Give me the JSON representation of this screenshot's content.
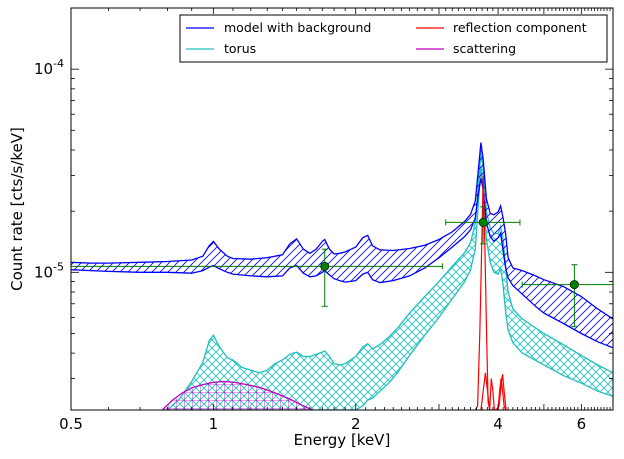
{
  "chart_data": {
    "type": "line",
    "xlabel": "Energy [keV]",
    "ylabel": "Count rate [cts/s/keV]",
    "x_scale": "log",
    "y_scale": "log",
    "xlim": [
      0.5,
      7.0
    ],
    "ylim": [
      2.1e-06,
      0.0002
    ],
    "x_ticks": [
      {
        "value": 0.5,
        "label": "0.5"
      },
      {
        "value": 1,
        "label": "1"
      },
      {
        "value": 2,
        "label": "2"
      },
      {
        "value": 4,
        "label": "4"
      },
      {
        "value": 6,
        "label": "6"
      }
    ],
    "y_ticks": [
      {
        "value": 1e-05,
        "base": "10",
        "exp": "-5"
      },
      {
        "value": 0.0001,
        "base": "10",
        "exp": "-4"
      }
    ],
    "legend": {
      "placement": "top-right",
      "entries": [
        {
          "label": "model with background",
          "color": "#0000ff"
        },
        {
          "label": "torus",
          "color": "#1fbfbf"
        },
        {
          "label": "reflection component",
          "color": "#ff0000"
        },
        {
          "label": "scattering",
          "color": "#bf00bf"
        }
      ]
    },
    "series": [
      {
        "name": "model with background",
        "color": "#0000ff",
        "hatch": "diagonal",
        "x": [
          0.5,
          0.55,
          0.6,
          0.7,
          0.8,
          0.9,
          0.95,
          0.98,
          1.0,
          1.03,
          1.07,
          1.1,
          1.2,
          1.3,
          1.4,
          1.45,
          1.5,
          1.55,
          1.6,
          1.65,
          1.7,
          1.72,
          1.76,
          1.8,
          1.85,
          1.9,
          2.0,
          2.07,
          2.12,
          2.17,
          2.25,
          2.4,
          2.6,
          2.8,
          3.0,
          3.2,
          3.4,
          3.5,
          3.58,
          3.63,
          3.68,
          3.72,
          3.78,
          3.85,
          3.92,
          4.0,
          4.05,
          4.1,
          4.15,
          4.2,
          4.3,
          4.5,
          4.8,
          5.0,
          5.5,
          6.0,
          6.5,
          7.0
        ],
        "upper": [
          1.12e-05,
          1.11e-05,
          1.11e-05,
          1.12e-05,
          1.13e-05,
          1.15e-05,
          1.2e-05,
          1.35e-05,
          1.42e-05,
          1.3e-05,
          1.2e-05,
          1.17e-05,
          1.16e-05,
          1.18e-05,
          1.22e-05,
          1.38e-05,
          1.46e-05,
          1.3e-05,
          1.24e-05,
          1.3e-05,
          1.42e-05,
          1.45e-05,
          1.3e-05,
          1.23e-05,
          1.24e-05,
          1.26e-05,
          1.33e-05,
          1.48e-05,
          1.52e-05,
          1.35e-05,
          1.29e-05,
          1.28e-05,
          1.31e-05,
          1.36e-05,
          1.45e-05,
          1.58e-05,
          1.78e-05,
          1.93e-05,
          2.25e-05,
          3.1e-05,
          4.35e-05,
          3.6e-05,
          2.3e-05,
          1.95e-05,
          1.92e-05,
          1.98e-05,
          2.12e-05,
          1.85e-05,
          1.55e-05,
          1.18e-05,
          1.05e-05,
          1.02e-05,
          9.6e-06,
          9.2e-06,
          8.5e-06,
          7.6e-06,
          6.6e-06,
          5.9e-06
        ],
        "lower": [
          1.03e-05,
          1.02e-05,
          1.01e-05,
          1e-05,
          1e-05,
          9.9e-06,
          1.02e-05,
          1.06e-05,
          1.08e-05,
          1.04e-05,
          1e-05,
          9.8e-06,
          9.6e-06,
          9.5e-06,
          9.6e-06,
          1.05e-05,
          1.08e-05,
          9.9e-06,
          9.5e-06,
          9.6e-06,
          1e-05,
          1.02e-05,
          9.7e-06,
          9.3e-06,
          9.1e-06,
          8.95e-06,
          9.1e-06,
          9.8e-06,
          1e-05,
          9.2e-06,
          8.9e-06,
          9.1e-06,
          9.6e-06,
          1.05e-05,
          1.18e-05,
          1.33e-05,
          1.5e-05,
          1.62e-05,
          1.85e-05,
          2.4e-05,
          2.9e-05,
          2.55e-05,
          1.75e-05,
          1.5e-05,
          1.42e-05,
          1.48e-05,
          1.56e-05,
          1.28e-05,
          1.05e-05,
          9.4e-06,
          8.6e-06,
          7.8e-06,
          6.8e-06,
          6.3e-06,
          5.6e-06,
          5e-06,
          4.55e-06,
          4.25e-06
        ]
      },
      {
        "name": "torus",
        "color": "#1fbfbf",
        "hatch": "cross",
        "x": [
          0.8,
          0.85,
          0.9,
          0.95,
          0.98,
          1.0,
          1.03,
          1.07,
          1.1,
          1.15,
          1.2,
          1.25,
          1.3,
          1.35,
          1.4,
          1.45,
          1.5,
          1.55,
          1.6,
          1.65,
          1.7,
          1.72,
          1.76,
          1.8,
          1.85,
          1.9,
          2.0,
          2.07,
          2.12,
          2.17,
          2.25,
          2.35,
          2.45,
          2.6,
          2.8,
          3.0,
          3.2,
          3.4,
          3.5,
          3.58,
          3.63,
          3.68,
          3.72,
          3.78,
          3.85,
          3.92,
          4.0,
          4.05,
          4.1,
          4.15,
          4.2,
          4.3,
          4.5,
          5.0,
          5.5,
          6.0,
          6.5,
          7.0
        ],
        "upper": [
          2.1e-06,
          2.4e-06,
          2.9e-06,
          3.6e-06,
          4.6e-06,
          4.9e-06,
          4.3e-06,
          3.8e-06,
          3.7e-06,
          3.4e-06,
          3.3e-06,
          3.2e-06,
          3.3e-06,
          3.55e-06,
          3.7e-06,
          3.95e-06,
          4.05e-06,
          3.85e-06,
          3.85e-06,
          3.95e-06,
          4.05e-06,
          4.1e-06,
          3.85e-06,
          3.55e-06,
          3.5e-06,
          3.55e-06,
          3.85e-06,
          4.3e-06,
          4.45e-06,
          4.2e-06,
          4.4e-06,
          4.8e-06,
          5.3e-06,
          6.3e-06,
          7.6e-06,
          9e-06,
          1.07e-05,
          1.25e-05,
          1.4e-05,
          1.75e-05,
          2.6e-05,
          3.9e-05,
          3.2e-05,
          2e-05,
          1.65e-05,
          1.55e-05,
          1.55e-05,
          1.68e-05,
          1.45e-05,
          1.08e-05,
          8e-06,
          6.6e-06,
          5.9e-06,
          5e-06,
          4.4e-06,
          3.9e-06,
          3.5e-06,
          3.2e-06
        ],
        "lower": [
          2.1e-06,
          2.1e-06,
          2.1e-06,
          2.1e-06,
          2.1e-06,
          2.1e-06,
          2.1e-06,
          2.1e-06,
          2.1e-06,
          2.1e-06,
          2.1e-06,
          2.1e-06,
          2.1e-06,
          2.1e-06,
          2.1e-06,
          2.1e-06,
          2.1e-06,
          2.1e-06,
          2.1e-06,
          2.1e-06,
          2.1e-06,
          2.1e-06,
          2.1e-06,
          2.1e-06,
          2.1e-06,
          2.1e-06,
          2.1e-06,
          2.2e-06,
          2.35e-06,
          2.4e-06,
          2.6e-06,
          2.85e-06,
          3.2e-06,
          3.9e-06,
          4.9e-06,
          6e-06,
          7.4e-06,
          9e-06,
          1.03e-05,
          1.3e-05,
          2.1e-05,
          3.3e-05,
          2.5e-05,
          1.45e-05,
          1.12e-05,
          1e-05,
          9.8e-06,
          1.05e-05,
          8.6e-06,
          6.4e-06,
          5.2e-06,
          4.5e-06,
          4e-06,
          3.5e-06,
          3.1e-06,
          2.85e-06,
          2.6e-06,
          2.45e-06
        ]
      },
      {
        "name": "reflection component",
        "color": "#ff0000",
        "x": [
          3.58,
          3.62,
          3.66,
          3.69,
          3.72,
          3.75,
          3.78,
          3.81,
          3.84,
          3.87,
          3.9,
          3.93,
          3.96,
          4.0,
          4.03,
          4.06,
          4.09,
          4.12,
          4.15
        ],
        "y": [
          2.1e-06,
          2.2e-06,
          5e-06,
          1.2e-05,
          3e-05,
          1.4e-05,
          5.5e-06,
          2.3e-06,
          2.1e-06,
          3e-06,
          2.6e-06,
          2.1e-06,
          2.1e-06,
          2.1e-06,
          2.6e-06,
          3e-06,
          2.6e-06,
          2.2e-06,
          2.1e-06
        ],
        "x2": [
          3.68,
          3.72,
          3.76,
          3.8,
          3.84,
          3.9,
          3.96,
          4.02,
          4.06,
          4.09,
          4.12,
          4.16
        ],
        "y2": [
          2.1e-06,
          2.6e-06,
          3.2e-06,
          2.6e-06,
          2.1e-06,
          2.1e-06,
          2.1e-06,
          2.2e-06,
          2.8e-06,
          3.15e-06,
          2.6e-06,
          2.1e-06
        ]
      },
      {
        "name": "scattering",
        "color": "#bf00bf",
        "hatch": "cross-purple",
        "x": [
          0.78,
          0.82,
          0.86,
          0.9,
          0.95,
          1.0,
          1.05,
          1.1,
          1.18,
          1.26,
          1.35,
          1.45,
          1.55,
          1.62
        ],
        "upper": [
          2.1e-06,
          2.35e-06,
          2.55e-06,
          2.7e-06,
          2.8e-06,
          2.87e-06,
          2.9e-06,
          2.88e-06,
          2.8e-06,
          2.7e-06,
          2.55e-06,
          2.38e-06,
          2.2e-06,
          2.1e-06
        ],
        "lower": [
          2.1e-06,
          2.1e-06,
          2.1e-06,
          2.1e-06,
          2.1e-06,
          2.1e-06,
          2.1e-06,
          2.1e-06,
          2.1e-06,
          2.1e-06,
          2.1e-06,
          2.1e-06,
          2.1e-06,
          2.1e-06
        ]
      }
    ],
    "data_points": {
      "color": "#007f00",
      "points": [
        {
          "x": 1.72,
          "y": 1.07e-05,
          "x_lo": 0.5,
          "x_hi": 3.05,
          "y_lo": 6.8e-06,
          "y_hi": 1.3e-05
        },
        {
          "x": 3.72,
          "y": 1.76e-05,
          "x_lo": 3.1,
          "x_hi": 4.45,
          "y_lo": 1.38e-05,
          "y_hi": 2.1e-05
        },
        {
          "x": 5.8,
          "y": 8.7e-06,
          "x_lo": 4.5,
          "x_hi": 7.0,
          "y_lo": 5.4e-06,
          "y_hi": 1.09e-05
        }
      ]
    }
  }
}
